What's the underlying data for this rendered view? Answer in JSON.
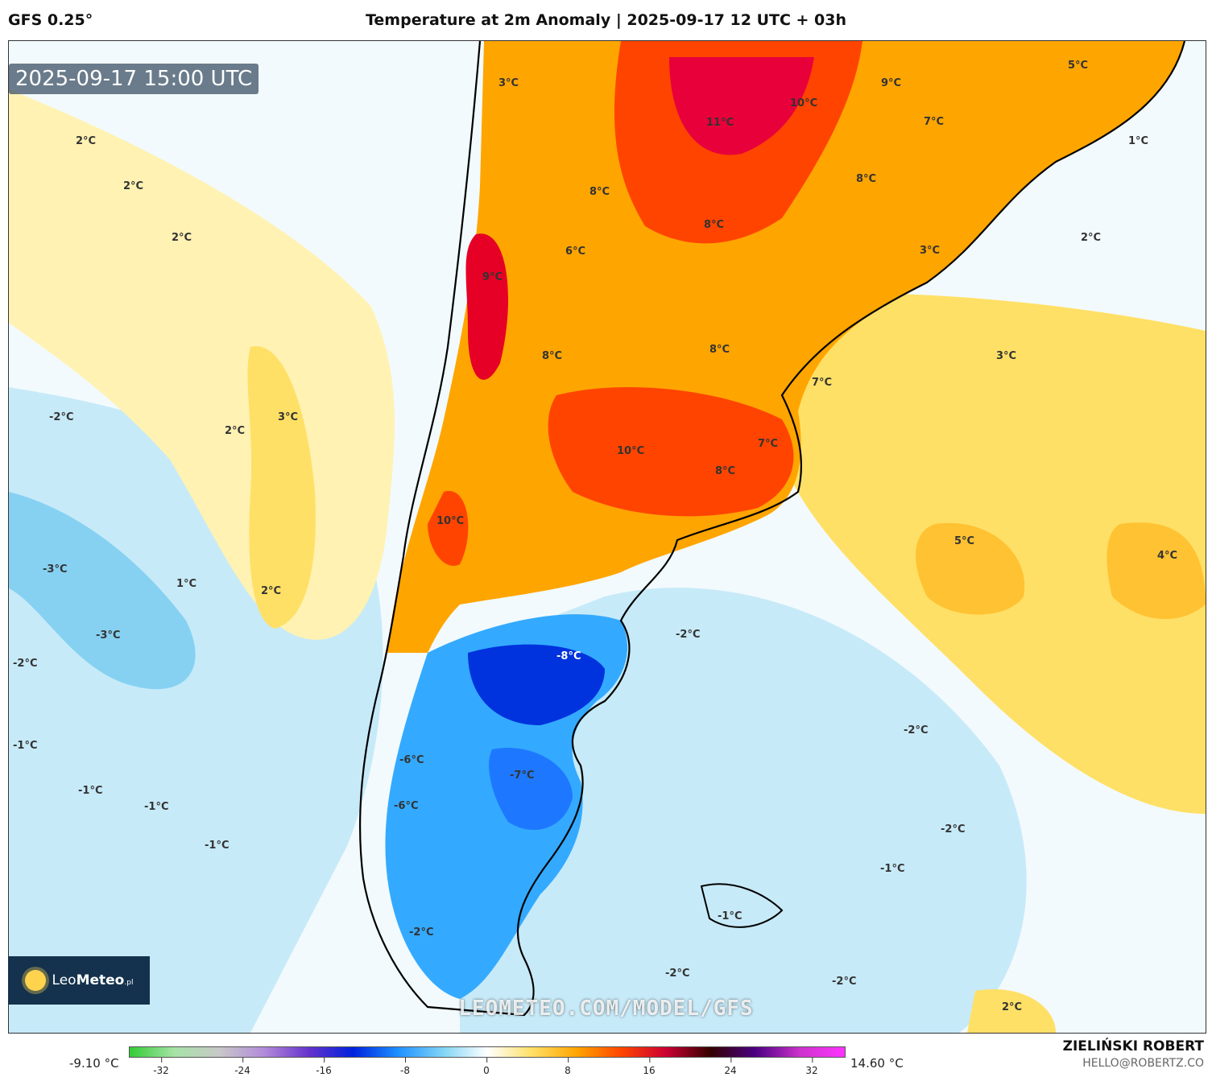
{
  "header": {
    "model": "GFS 0.25°",
    "title": "Temperature at 2m Anomaly | 2025-09-17 12 UTC + 03h"
  },
  "map": {
    "valid_time": "2025-09-17 15:00 UTC",
    "watermark": "LEOMETEO.COM/MODEL/GFS",
    "labels": [
      {
        "text": "3°C"
      },
      {
        "text": "5°C"
      },
      {
        "text": "9°C"
      },
      {
        "text": "10°C"
      },
      {
        "text": "11°C"
      },
      {
        "text": "7°C"
      },
      {
        "text": "1°C"
      },
      {
        "text": "2°C"
      },
      {
        "text": "2°C"
      },
      {
        "text": "2°C"
      },
      {
        "text": "8°C"
      },
      {
        "text": "8°C"
      },
      {
        "text": "8°C"
      },
      {
        "text": "6°C"
      },
      {
        "text": "2°C"
      },
      {
        "text": "9°C"
      },
      {
        "text": "3°C"
      },
      {
        "text": "8°C"
      },
      {
        "text": "8°C"
      },
      {
        "text": "3°C"
      },
      {
        "text": "7°C"
      },
      {
        "text": "-2°C"
      },
      {
        "text": "2°C"
      },
      {
        "text": "3°C"
      },
      {
        "text": "10°C"
      },
      {
        "text": "7°C"
      },
      {
        "text": "8°C"
      },
      {
        "text": "10°C"
      },
      {
        "text": "5°C"
      },
      {
        "text": "4°C"
      },
      {
        "text": "-3°C"
      },
      {
        "text": "1°C"
      },
      {
        "text": "2°C"
      },
      {
        "text": "-3°C"
      },
      {
        "text": "-2°C"
      },
      {
        "text": "-2°C"
      },
      {
        "text": "-8°C"
      },
      {
        "text": "-1°C"
      },
      {
        "text": "-2°C"
      },
      {
        "text": "-6°C"
      },
      {
        "text": "-7°C"
      },
      {
        "text": "-1°C"
      },
      {
        "text": "-1°C"
      },
      {
        "text": "-6°C"
      },
      {
        "text": "-1°C"
      },
      {
        "text": "-2°C"
      },
      {
        "text": "-1°C"
      },
      {
        "text": "-1°C"
      },
      {
        "text": "-2°C"
      },
      {
        "text": "-2°C"
      },
      {
        "text": "-2°C"
      },
      {
        "text": "2°C"
      }
    ]
  },
  "logo": {
    "brand_light": "Leo",
    "brand_bold": "Meteo",
    "suffix": ".pl"
  },
  "colorbar": {
    "min_label": "-9.10 °C",
    "max_label": "14.60 °C",
    "ticks": [
      "-32",
      "-24",
      "-16",
      "-8",
      "0",
      "8",
      "16",
      "24",
      "32"
    ],
    "colors": [
      "#33cc33",
      "#a6e3a6",
      "#c8c8c8",
      "#b38cd9",
      "#6633cc",
      "#0022dd",
      "#1e90ff",
      "#7fd4f5",
      "#ffffff",
      "#ffe066",
      "#ffa500",
      "#ff4400",
      "#cc0033",
      "#330000",
      "#4b0082",
      "#cc33cc",
      "#ff33ff"
    ]
  },
  "credits": {
    "author": "ZIELIŃSKI ROBERT",
    "email": "HELLO@ROBERTZ.CO"
  }
}
